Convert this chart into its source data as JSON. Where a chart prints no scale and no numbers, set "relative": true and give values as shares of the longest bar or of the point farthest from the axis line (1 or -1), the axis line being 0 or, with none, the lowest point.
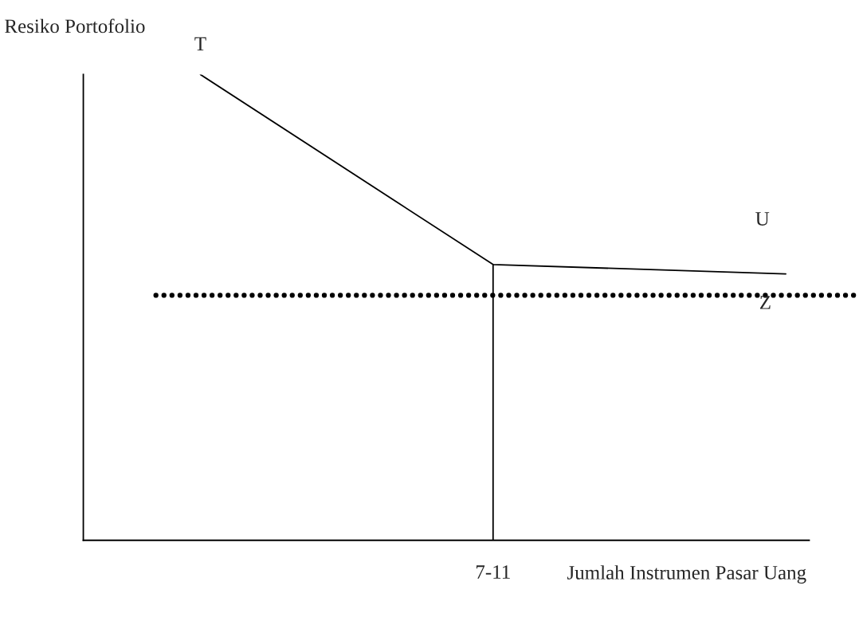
{
  "chart_data": {
    "type": "line",
    "relative": true,
    "ylabel": "Resiko Portofolio",
    "xlabel": "Jumlah Instrumen Pasar Uang",
    "categories": [
      null,
      null,
      null
    ],
    "series": [
      {
        "color": "#000000",
        "values": [
          1,
          0.592,
          0.572
        ]
      }
    ],
    "ref_lines": [
      {
        "axis": "y",
        "value": 0.526,
        "color": "#000000",
        "line_style": "dotted"
      }
    ],
    "annotations": [
      "T",
      "U",
      "Z",
      "7-11"
    ],
    "legend": false,
    "marker": "none",
    "line_style": "solid"
  }
}
